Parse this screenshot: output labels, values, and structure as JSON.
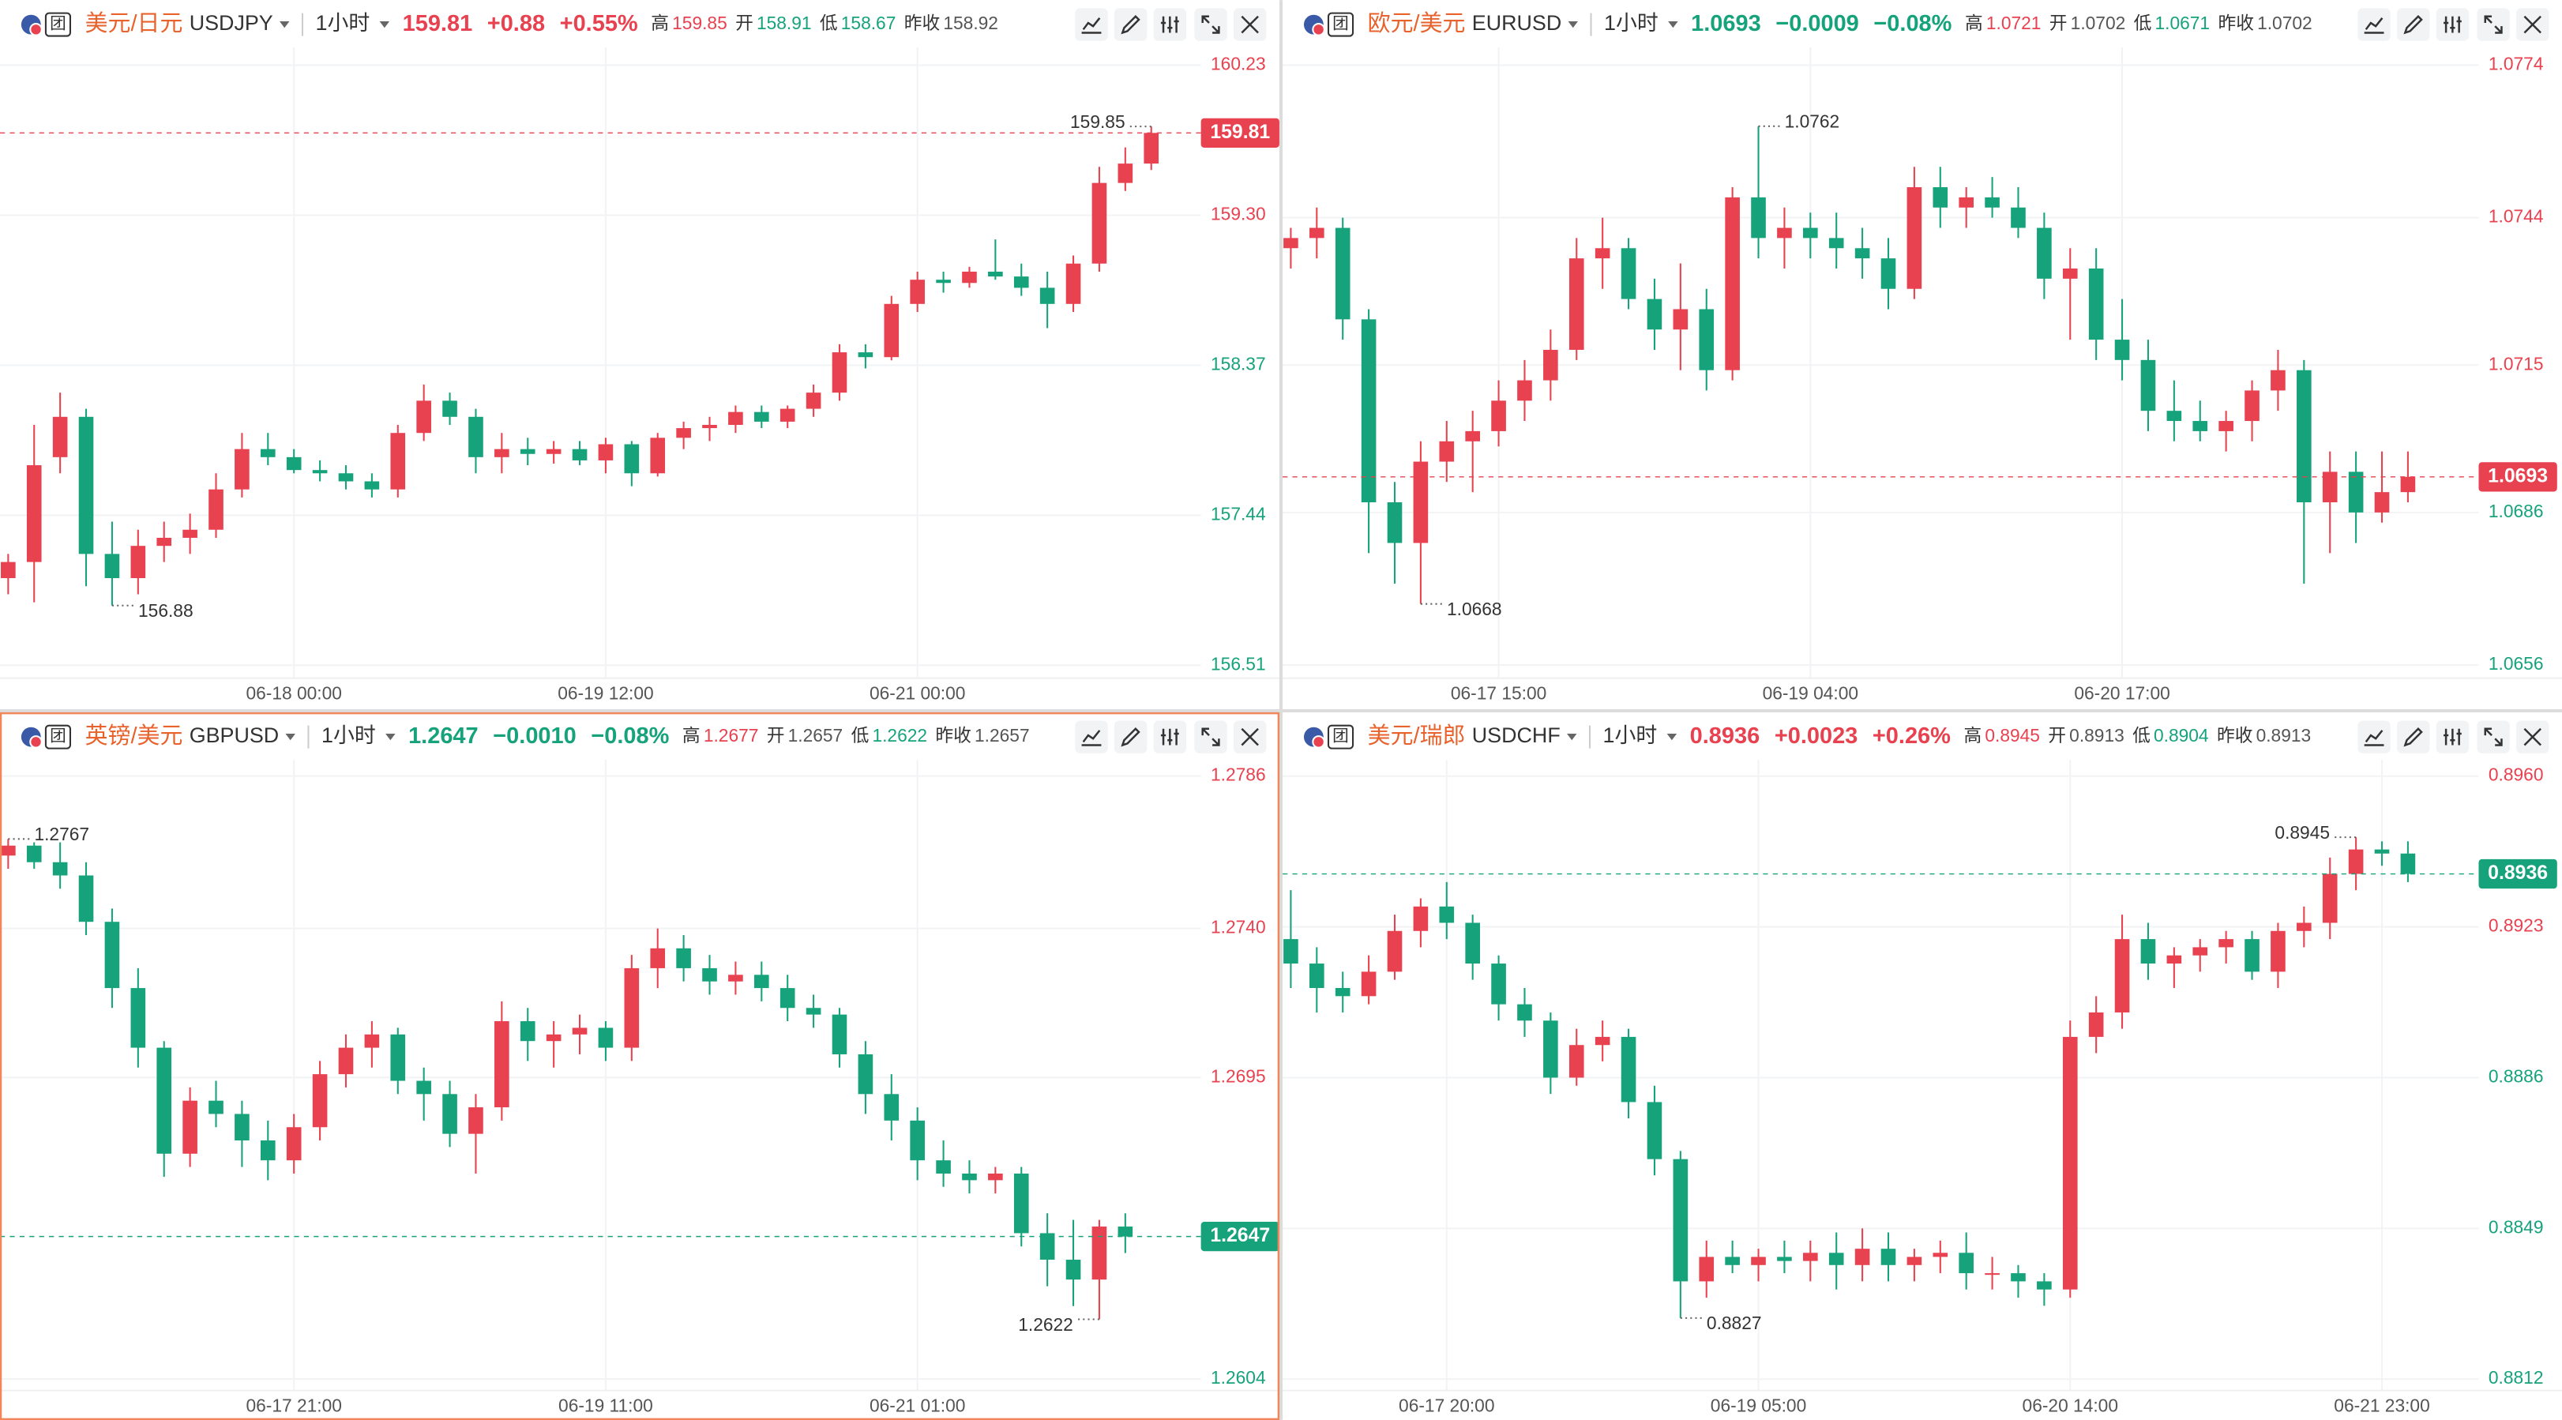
{
  "chart_data": [
    {
      "type": "candlestick",
      "badge": "团",
      "title": "美元/日元",
      "symbol": "USDJPY",
      "interval": "1小时",
      "last": 159.81,
      "change": "+0.88",
      "change_pct": "+0.55%",
      "stats": [
        {
          "label": "高",
          "value": 159.85
        },
        {
          "label": "开",
          "value": 158.91
        },
        {
          "label": "低",
          "value": 158.67
        },
        {
          "label": "昨收",
          "value": 158.92
        }
      ],
      "up_color": "#e8414f",
      "down_color": "#16a37b",
      "categories": [
        null,
        null,
        null,
        null,
        null,
        null,
        null,
        null,
        null,
        null,
        null,
        "06-18 00:00",
        null,
        null,
        null,
        null,
        null,
        null,
        null,
        null,
        null,
        null,
        null,
        "06-19 12:00",
        null,
        null,
        null,
        null,
        null,
        null,
        null,
        null,
        null,
        null,
        null,
        "06-21 00:00",
        null,
        null,
        null,
        null,
        null,
        null,
        null,
        null,
        null
      ],
      "open": [
        157.05,
        157.15,
        157.8,
        158.05,
        157.2,
        157.05,
        157.25,
        157.3,
        157.35,
        157.6,
        157.85,
        157.8,
        157.72,
        157.7,
        157.65,
        157.6,
        157.95,
        158.15,
        158.05,
        157.8,
        157.85,
        157.82,
        157.85,
        157.78,
        157.88,
        157.7,
        157.92,
        157.98,
        158.0,
        158.08,
        158.02,
        158.1,
        158.2,
        158.45,
        158.42,
        158.75,
        158.9,
        158.88,
        158.95,
        158.92,
        158.85,
        158.75,
        159.0,
        159.5,
        159.62
      ],
      "high": [
        157.2,
        158.0,
        158.2,
        158.1,
        157.4,
        157.35,
        157.4,
        157.45,
        157.7,
        157.95,
        157.95,
        157.85,
        157.78,
        157.75,
        157.7,
        158.0,
        158.25,
        158.2,
        158.1,
        157.95,
        157.92,
        157.9,
        157.9,
        157.92,
        157.9,
        157.95,
        158.02,
        158.05,
        158.12,
        158.12,
        158.12,
        158.25,
        158.5,
        158.5,
        158.8,
        158.95,
        158.95,
        158.98,
        159.15,
        159.0,
        158.95,
        159.05,
        159.6,
        159.72,
        159.85
      ],
      "low": [
        156.95,
        156.9,
        157.7,
        157.0,
        156.88,
        156.95,
        157.15,
        157.2,
        157.3,
        157.55,
        157.75,
        157.7,
        157.65,
        157.6,
        157.55,
        157.55,
        157.9,
        158.0,
        157.7,
        157.7,
        157.75,
        157.76,
        157.75,
        157.7,
        157.62,
        157.68,
        157.85,
        157.9,
        157.95,
        157.98,
        157.98,
        158.05,
        158.15,
        158.35,
        158.4,
        158.7,
        158.82,
        158.85,
        158.9,
        158.8,
        158.6,
        158.7,
        158.95,
        159.45,
        159.58
      ],
      "close": [
        157.15,
        157.75,
        158.05,
        157.2,
        157.05,
        157.25,
        157.3,
        157.35,
        157.6,
        157.85,
        157.8,
        157.72,
        157.7,
        157.65,
        157.6,
        157.95,
        158.15,
        158.05,
        157.8,
        157.85,
        157.82,
        157.85,
        157.78,
        157.88,
        157.7,
        157.92,
        157.98,
        158.0,
        158.08,
        158.02,
        158.1,
        158.2,
        158.45,
        158.42,
        158.75,
        158.9,
        158.88,
        158.95,
        158.92,
        158.85,
        158.75,
        159.0,
        159.5,
        159.62,
        159.81
      ],
      "ylim": [
        156.43,
        160.34
      ],
      "yticks": [
        156.51,
        157.44,
        158.37,
        {
          "value": 159.3,
          "label": "159.30"
        },
        160.23
      ]
    },
    {
      "type": "candlestick",
      "badge": "团",
      "title": "欧元/美元",
      "symbol": "EURUSD",
      "interval": "1小时",
      "last": 1.0693,
      "change": "−0.0009",
      "change_pct": "−0.08%",
      "stats": [
        {
          "label": "高",
          "value": 1.0721
        },
        {
          "label": "开",
          "value": 1.0702
        },
        {
          "label": "低",
          "value": 1.0671
        },
        {
          "label": "昨收",
          "value": 1.0702
        }
      ],
      "up_color": "#e8414f",
      "down_color": "#16a37b",
      "categories": [
        null,
        null,
        null,
        null,
        null,
        null,
        null,
        null,
        "06-17 15:00",
        null,
        null,
        null,
        null,
        null,
        null,
        null,
        null,
        null,
        null,
        null,
        "06-19 04:00",
        null,
        null,
        null,
        null,
        null,
        null,
        null,
        null,
        null,
        null,
        null,
        "06-20 17:00",
        null,
        null,
        null,
        null,
        null,
        null,
        null,
        null,
        null,
        null,
        null
      ],
      "open": [
        1.0738,
        1.074,
        1.0742,
        1.0724,
        1.0688,
        1.068,
        1.0696,
        1.07,
        1.0702,
        1.0708,
        1.0712,
        1.0718,
        1.0736,
        1.0738,
        1.0728,
        1.0722,
        1.0726,
        1.0714,
        1.0748,
        1.074,
        1.0742,
        1.074,
        1.0738,
        1.0736,
        1.073,
        1.075,
        1.0746,
        1.0748,
        1.0746,
        1.0742,
        1.0732,
        1.0734,
        1.072,
        1.0716,
        1.0706,
        1.0704,
        1.0702,
        1.0704,
        1.071,
        1.0714,
        1.0688,
        1.0694,
        1.0686,
        1.069
      ],
      "high": [
        1.0742,
        1.0746,
        1.0744,
        1.0726,
        1.0692,
        1.07,
        1.0704,
        1.0706,
        1.0712,
        1.0716,
        1.0722,
        1.074,
        1.0744,
        1.074,
        1.0732,
        1.0735,
        1.073,
        1.075,
        1.0762,
        1.0746,
        1.0745,
        1.0745,
        1.0742,
        1.074,
        1.0754,
        1.0754,
        1.075,
        1.0752,
        1.075,
        1.0745,
        1.0738,
        1.0738,
        1.0728,
        1.072,
        1.0712,
        1.0708,
        1.0706,
        1.0712,
        1.0718,
        1.0716,
        1.0698,
        1.0698,
        1.0698,
        1.0698
      ],
      "low": [
        1.0734,
        1.0736,
        1.072,
        1.0678,
        1.0672,
        1.0668,
        1.0692,
        1.069,
        1.0699,
        1.0704,
        1.0708,
        1.0716,
        1.073,
        1.0726,
        1.0718,
        1.0714,
        1.071,
        1.0712,
        1.0736,
        1.0734,
        1.0736,
        1.0734,
        1.0732,
        1.0726,
        1.0728,
        1.0742,
        1.0742,
        1.0744,
        1.074,
        1.0728,
        1.072,
        1.0716,
        1.0712,
        1.0702,
        1.07,
        1.07,
        1.0698,
        1.07,
        1.0706,
        1.0672,
        1.0678,
        1.068,
        1.0684,
        1.0688
      ],
      "close": [
        1.074,
        1.0742,
        1.0724,
        1.0688,
        1.068,
        1.0696,
        1.07,
        1.0702,
        1.0708,
        1.0712,
        1.0718,
        1.0736,
        1.0738,
        1.0728,
        1.0722,
        1.0726,
        1.0714,
        1.0748,
        1.074,
        1.0742,
        1.074,
        1.0738,
        1.0736,
        1.073,
        1.075,
        1.0746,
        1.0748,
        1.0746,
        1.0742,
        1.0732,
        1.0734,
        1.072,
        1.0716,
        1.0706,
        1.0704,
        1.0702,
        1.0704,
        1.071,
        1.0714,
        1.0688,
        1.0694,
        1.0686,
        1.069,
        1.0693
      ],
      "ylim": [
        1.06534,
        1.07775
      ],
      "yticks": [
        1.0656,
        1.0686,
        1.0715,
        1.0744,
        1.0774
      ]
    },
    {
      "type": "candlestick",
      "badge": "团",
      "title": "英镑/美元",
      "symbol": "GBPUSD",
      "interval": "1小时",
      "last": 1.2647,
      "change": "−0.0010",
      "change_pct": "−0.08%",
      "stats": [
        {
          "label": "高",
          "value": 1.2677
        },
        {
          "label": "开",
          "value": 1.2657
        },
        {
          "label": "低",
          "value": 1.2622
        },
        {
          "label": "昨收",
          "value": 1.2657
        }
      ],
      "up_color": "#e8414f",
      "down_color": "#16a37b",
      "categories": [
        null,
        null,
        null,
        null,
        null,
        null,
        null,
        null,
        null,
        null,
        null,
        "06-17 21:00",
        null,
        null,
        null,
        null,
        null,
        null,
        null,
        null,
        null,
        null,
        null,
        "06-19 11:00",
        null,
        null,
        null,
        null,
        null,
        null,
        null,
        null,
        null,
        null,
        null,
        "06-21 01:00",
        null,
        null,
        null,
        null,
        null,
        null,
        null,
        null
      ],
      "open": [
        1.2762,
        1.2765,
        1.276,
        1.2756,
        1.2742,
        1.2722,
        1.2704,
        1.2672,
        1.2688,
        1.2684,
        1.2676,
        1.267,
        1.268,
        1.2696,
        1.2704,
        1.2708,
        1.2694,
        1.269,
        1.2678,
        1.2686,
        1.2712,
        1.2706,
        1.2708,
        1.271,
        1.2704,
        1.2728,
        1.2734,
        1.2728,
        1.2724,
        1.2726,
        1.2722,
        1.2716,
        1.2714,
        1.2702,
        1.269,
        1.2682,
        1.267,
        1.2666,
        1.2664,
        1.2666,
        1.2648,
        1.264,
        1.2634,
        1.265
      ],
      "high": [
        1.2767,
        1.2766,
        1.2766,
        1.276,
        1.2746,
        1.2728,
        1.2706,
        1.2692,
        1.2694,
        1.2688,
        1.2682,
        1.2684,
        1.27,
        1.2708,
        1.2712,
        1.271,
        1.2698,
        1.2694,
        1.269,
        1.2718,
        1.2716,
        1.2712,
        1.2714,
        1.2712,
        1.2732,
        1.274,
        1.2738,
        1.2732,
        1.273,
        1.273,
        1.2726,
        1.272,
        1.2716,
        1.2706,
        1.2696,
        1.2686,
        1.2676,
        1.267,
        1.2668,
        1.2668,
        1.2654,
        1.2652,
        1.2652,
        1.2654
      ],
      "low": [
        1.2758,
        1.2758,
        1.2752,
        1.2738,
        1.2716,
        1.2698,
        1.2665,
        1.2668,
        1.268,
        1.2668,
        1.2664,
        1.2666,
        1.2676,
        1.2692,
        1.2698,
        1.269,
        1.2682,
        1.2674,
        1.2666,
        1.2682,
        1.27,
        1.2698,
        1.2702,
        1.27,
        1.27,
        1.2722,
        1.2724,
        1.272,
        1.272,
        1.2718,
        1.2712,
        1.271,
        1.2698,
        1.2684,
        1.2676,
        1.2664,
        1.2662,
        1.266,
        1.266,
        1.2644,
        1.2632,
        1.2626,
        1.2622,
        1.2642
      ],
      "close": [
        1.2765,
        1.276,
        1.2756,
        1.2742,
        1.2722,
        1.2704,
        1.2672,
        1.2688,
        1.2684,
        1.2676,
        1.267,
        1.268,
        1.2696,
        1.2704,
        1.2708,
        1.2694,
        1.269,
        1.2678,
        1.2686,
        1.2712,
        1.2706,
        1.2708,
        1.271,
        1.2704,
        1.2728,
        1.2734,
        1.2728,
        1.2724,
        1.2726,
        1.2722,
        1.2716,
        1.2714,
        1.2702,
        1.269,
        1.2682,
        1.267,
        1.2666,
        1.2664,
        1.2666,
        1.2648,
        1.264,
        1.2634,
        1.265,
        1.2647
      ],
      "ylim": [
        1.26005,
        1.27909
      ],
      "yticks": [
        1.2604,
        1.2695,
        {
          "value": 1.274,
          "label": "1.2740"
        },
        1.2786
      ]
    },
    {
      "type": "candlestick",
      "badge": "团",
      "title": "美元/瑞郎",
      "symbol": "USDCHF",
      "interval": "1小时",
      "last": 0.8936,
      "change": "+0.0023",
      "change_pct": "+0.26%",
      "stats": [
        {
          "label": "高",
          "value": 0.8945
        },
        {
          "label": "开",
          "value": 0.8913
        },
        {
          "label": "低",
          "value": 0.8904
        },
        {
          "label": "昨收",
          "value": 0.8913
        }
      ],
      "up_color": "#e8414f",
      "down_color": "#16a37b",
      "categories": [
        null,
        null,
        null,
        null,
        null,
        null,
        "06-17 20:00",
        null,
        null,
        null,
        null,
        null,
        null,
        null,
        null,
        null,
        null,
        null,
        "06-19 05:00",
        null,
        null,
        null,
        null,
        null,
        null,
        null,
        null,
        null,
        null,
        null,
        "06-20 14:00",
        null,
        null,
        null,
        null,
        null,
        null,
        null,
        null,
        null,
        null,
        null,
        "06-21 23:00",
        null
      ],
      "open": [
        0.892,
        0.8914,
        0.8908,
        0.8906,
        0.8912,
        0.8922,
        0.8928,
        0.8924,
        0.8914,
        0.8904,
        0.89,
        0.8886,
        0.8894,
        0.8896,
        0.888,
        0.8866,
        0.8836,
        0.8842,
        0.884,
        0.8842,
        0.8841,
        0.8843,
        0.884,
        0.8844,
        0.884,
        0.8842,
        0.8843,
        0.8838,
        0.8838,
        0.8836,
        0.8834,
        0.8896,
        0.8902,
        0.892,
        0.8914,
        0.8916,
        0.8918,
        0.892,
        0.8912,
        0.8922,
        0.8924,
        0.8936,
        0.8942,
        0.8941
      ],
      "high": [
        0.8932,
        0.8918,
        0.8912,
        0.8916,
        0.8926,
        0.893,
        0.8934,
        0.8926,
        0.8916,
        0.8908,
        0.8902,
        0.8898,
        0.89,
        0.8898,
        0.8884,
        0.8868,
        0.8846,
        0.8846,
        0.8844,
        0.8846,
        0.8846,
        0.8848,
        0.8849,
        0.8848,
        0.8844,
        0.8846,
        0.8848,
        0.8842,
        0.884,
        0.8838,
        0.89,
        0.8906,
        0.8926,
        0.8924,
        0.8918,
        0.892,
        0.8922,
        0.8922,
        0.8924,
        0.8928,
        0.894,
        0.8945,
        0.8944,
        0.8944
      ],
      "low": [
        0.8908,
        0.8902,
        0.8902,
        0.8904,
        0.891,
        0.8918,
        0.892,
        0.891,
        0.89,
        0.8896,
        0.8882,
        0.8884,
        0.889,
        0.8876,
        0.8862,
        0.8827,
        0.8832,
        0.8838,
        0.8836,
        0.8838,
        0.8836,
        0.8834,
        0.8836,
        0.8836,
        0.8836,
        0.8838,
        0.8834,
        0.8834,
        0.8832,
        0.883,
        0.8832,
        0.8892,
        0.8898,
        0.891,
        0.8908,
        0.8912,
        0.8914,
        0.891,
        0.8908,
        0.8918,
        0.892,
        0.8932,
        0.8938,
        0.8934
      ],
      "close": [
        0.8914,
        0.8908,
        0.8906,
        0.8912,
        0.8922,
        0.8928,
        0.8924,
        0.8914,
        0.8904,
        0.89,
        0.8886,
        0.8894,
        0.8896,
        0.888,
        0.8866,
        0.8836,
        0.8842,
        0.884,
        0.8842,
        0.8841,
        0.8843,
        0.884,
        0.8844,
        0.884,
        0.8842,
        0.8843,
        0.8838,
        0.8838,
        0.8836,
        0.8834,
        0.8896,
        0.8902,
        0.892,
        0.8914,
        0.8916,
        0.8918,
        0.892,
        0.8912,
        0.8922,
        0.8924,
        0.8936,
        0.8942,
        0.8941,
        0.8936
      ],
      "ylim": [
        0.88092,
        0.8964
      ],
      "yticks": [
        0.8812,
        0.8849,
        0.8886,
        0.8923,
        {
          "value": 0.896,
          "label": "0.8960"
        }
      ]
    }
  ]
}
